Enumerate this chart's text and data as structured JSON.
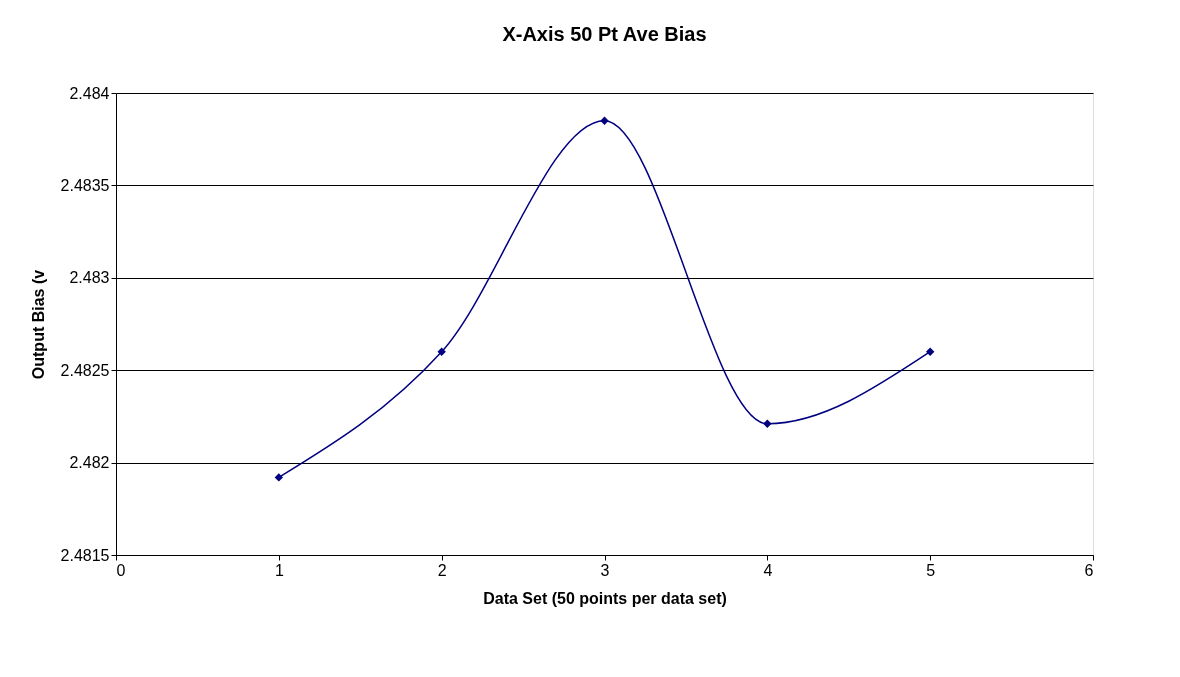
{
  "chart_data": {
    "type": "line",
    "title": "X-Axis 50 Pt Ave Bias",
    "xlabel": "Data Set (50 points per data set)",
    "ylabel": "Output Bias (v",
    "x": [
      1,
      2,
      3,
      4,
      5
    ],
    "series": [
      {
        "color": "#000080",
        "values": [
          2.48192,
          2.4826,
          2.48385,
          2.48221,
          2.4826
        ]
      }
    ],
    "xlim": [
      0,
      6
    ],
    "xticks": [
      0,
      1,
      2,
      3,
      4,
      5,
      6
    ],
    "ylim": [
      2.4815,
      2.484
    ],
    "yticks": [
      2.4815,
      2.482,
      2.4825,
      2.483,
      2.4835,
      2.484
    ],
    "grid": "y",
    "marker": "diamond",
    "line_style": "solid"
  }
}
